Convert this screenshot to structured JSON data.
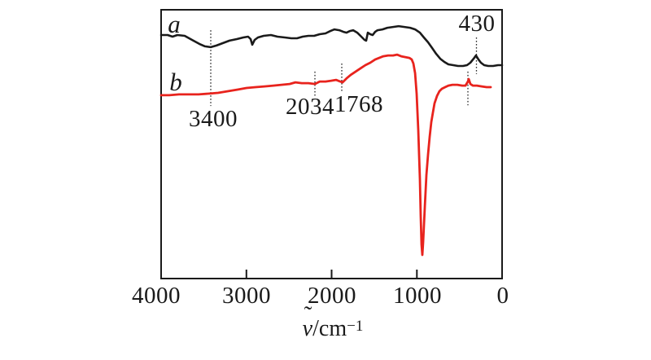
{
  "figure": {
    "background": "#ffffff",
    "text_color": "#1a1a1a"
  },
  "chart_data": {
    "type": "line",
    "title": "",
    "description": "IR transmittance spectra of two samples a and b versus wavenumber",
    "xlabel_parts": {
      "nu": "ν",
      "tilde": "˜",
      "slash_cm": "/cm",
      "exponent": "−1"
    },
    "xaxis": {
      "min": 0,
      "max": 4000,
      "reversed": true,
      "ticks": [
        {
          "value": 4000,
          "label": "4000",
          "mark": false
        },
        {
          "value": 3000,
          "label": "3000",
          "mark": true
        },
        {
          "value": 2000,
          "label": "2000",
          "mark": true
        },
        {
          "value": 1000,
          "label": "1000",
          "mark": true
        },
        {
          "value": 0,
          "label": "0",
          "mark": false
        }
      ]
    },
    "yaxis": {
      "label": "",
      "units": "transmittance (arbitrary, normalized 0 = plot bottom, 1 = plot top)"
    },
    "series": [
      {
        "name": "a",
        "color": "#1a1a1a",
        "stroke_width": 2.6,
        "points": [
          [
            4000,
            0.906
          ],
          [
            3924,
            0.906
          ],
          [
            3866,
            0.9
          ],
          [
            3809,
            0.906
          ],
          [
            3723,
            0.903
          ],
          [
            3637,
            0.888
          ],
          [
            3551,
            0.873
          ],
          [
            3485,
            0.864
          ],
          [
            3418,
            0.861
          ],
          [
            3351,
            0.867
          ],
          [
            3274,
            0.876
          ],
          [
            3198,
            0.885
          ],
          [
            3112,
            0.891
          ],
          [
            3036,
            0.897
          ],
          [
            2979,
            0.9
          ],
          [
            2950,
            0.891
          ],
          [
            2931,
            0.87
          ],
          [
            2903,
            0.888
          ],
          [
            2864,
            0.897
          ],
          [
            2797,
            0.903
          ],
          [
            2712,
            0.906
          ],
          [
            2635,
            0.9
          ],
          [
            2549,
            0.897
          ],
          [
            2473,
            0.894
          ],
          [
            2406,
            0.894
          ],
          [
            2339,
            0.9
          ],
          [
            2272,
            0.903
          ],
          [
            2205,
            0.903
          ],
          [
            2139,
            0.909
          ],
          [
            2072,
            0.912
          ],
          [
            2014,
            0.921
          ],
          [
            1967,
            0.927
          ],
          [
            1910,
            0.924
          ],
          [
            1862,
            0.918
          ],
          [
            1824,
            0.915
          ],
          [
            1785,
            0.921
          ],
          [
            1747,
            0.924
          ],
          [
            1699,
            0.915
          ],
          [
            1652,
            0.9
          ],
          [
            1613,
            0.888
          ],
          [
            1594,
            0.885
          ],
          [
            1575,
            0.915
          ],
          [
            1547,
            0.909
          ],
          [
            1518,
            0.906
          ],
          [
            1489,
            0.918
          ],
          [
            1461,
            0.924
          ],
          [
            1403,
            0.927
          ],
          [
            1346,
            0.933
          ],
          [
            1279,
            0.936
          ],
          [
            1213,
            0.939
          ],
          [
            1146,
            0.936
          ],
          [
            1079,
            0.933
          ],
          [
            1021,
            0.927
          ],
          [
            964,
            0.915
          ],
          [
            917,
            0.897
          ],
          [
            869,
            0.879
          ],
          [
            821,
            0.858
          ],
          [
            773,
            0.836
          ],
          [
            726,
            0.818
          ],
          [
            678,
            0.806
          ],
          [
            630,
            0.797
          ],
          [
            573,
            0.794
          ],
          [
            516,
            0.791
          ],
          [
            458,
            0.791
          ],
          [
            411,
            0.794
          ],
          [
            372,
            0.803
          ],
          [
            334,
            0.818
          ],
          [
            306,
            0.83
          ],
          [
            277,
            0.815
          ],
          [
            248,
            0.803
          ],
          [
            210,
            0.794
          ],
          [
            162,
            0.791
          ],
          [
            105,
            0.791
          ],
          [
            48,
            0.794
          ],
          [
            0,
            0.794
          ]
        ]
      },
      {
        "name": "b",
        "color": "#e8231d",
        "stroke_width": 2.8,
        "points": [
          [
            4000,
            0.682
          ],
          [
            3905,
            0.682
          ],
          [
            3790,
            0.685
          ],
          [
            3676,
            0.685
          ],
          [
            3561,
            0.685
          ],
          [
            3447,
            0.688
          ],
          [
            3332,
            0.691
          ],
          [
            3217,
            0.697
          ],
          [
            3103,
            0.703
          ],
          [
            2998,
            0.709
          ],
          [
            2893,
            0.712
          ],
          [
            2788,
            0.715
          ],
          [
            2683,
            0.718
          ],
          [
            2587,
            0.721
          ],
          [
            2492,
            0.724
          ],
          [
            2425,
            0.73
          ],
          [
            2349,
            0.727
          ],
          [
            2272,
            0.727
          ],
          [
            2196,
            0.724
          ],
          [
            2139,
            0.733
          ],
          [
            2072,
            0.733
          ],
          [
            2005,
            0.736
          ],
          [
            1948,
            0.739
          ],
          [
            1900,
            0.733
          ],
          [
            1871,
            0.73
          ],
          [
            1824,
            0.745
          ],
          [
            1776,
            0.758
          ],
          [
            1718,
            0.77
          ],
          [
            1661,
            0.782
          ],
          [
            1604,
            0.794
          ],
          [
            1547,
            0.803
          ],
          [
            1489,
            0.815
          ],
          [
            1442,
            0.821
          ],
          [
            1394,
            0.827
          ],
          [
            1337,
            0.83
          ],
          [
            1279,
            0.83
          ],
          [
            1232,
            0.833
          ],
          [
            1184,
            0.827
          ],
          [
            1136,
            0.824
          ],
          [
            1088,
            0.821
          ],
          [
            1060,
            0.815
          ],
          [
            1041,
            0.8
          ],
          [
            1021,
            0.764
          ],
          [
            1002,
            0.688
          ],
          [
            983,
            0.552
          ],
          [
            964,
            0.37
          ],
          [
            955,
            0.233
          ],
          [
            945,
            0.127
          ],
          [
            936,
            0.088
          ],
          [
            926,
            0.136
          ],
          [
            907,
            0.264
          ],
          [
            888,
            0.385
          ],
          [
            869,
            0.461
          ],
          [
            850,
            0.527
          ],
          [
            831,
            0.582
          ],
          [
            811,
            0.618
          ],
          [
            792,
            0.652
          ],
          [
            764,
            0.679
          ],
          [
            735,
            0.697
          ],
          [
            706,
            0.706
          ],
          [
            668,
            0.712
          ],
          [
            630,
            0.718
          ],
          [
            582,
            0.721
          ],
          [
            525,
            0.721
          ],
          [
            468,
            0.718
          ],
          [
            430,
            0.718
          ],
          [
            401,
            0.733
          ],
          [
            391,
            0.742
          ],
          [
            372,
            0.724
          ],
          [
            344,
            0.718
          ],
          [
            296,
            0.718
          ],
          [
            239,
            0.715
          ],
          [
            181,
            0.712
          ],
          [
            134,
            0.712
          ]
        ]
      }
    ],
    "annotations": [
      {
        "label": "3400",
        "value": 3400,
        "line_x": 3418,
        "t_top": 0.924,
        "t_bottom": 0.642
      },
      {
        "label": "2034",
        "value": 2034,
        "line_x": 2196,
        "t_top": 0.77,
        "t_bottom": 0.679
      },
      {
        "label": "1768",
        "value": 1768,
        "line_x": 1881,
        "t_top": 0.8,
        "t_bottom": 0.694
      },
      {
        "label": "430",
        "value": 430,
        "line_x": 301,
        "t_top": 0.897,
        "t_bottom": 0.761
      },
      {
        "label": "",
        "value": 430,
        "line_x": 401,
        "t_top": 0.77,
        "t_bottom": 0.645
      }
    ],
    "legend": {
      "shown": false
    },
    "grid": false,
    "marker_line_color": "#2a2a2a",
    "border_color": "#1a1a1a"
  }
}
